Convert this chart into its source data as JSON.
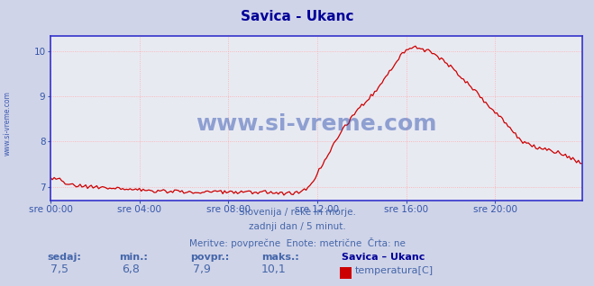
{
  "title": "Savica - Ukanc",
  "title_color": "#000099",
  "bg_color": "#d0d4e8",
  "plot_bg_color": "#e8eaf2",
  "line_color": "#cc0000",
  "axis_color": "#3333cc",
  "grid_color": "#ffaaaa",
  "grid_linestyle": "dotted",
  "tick_label_color": "#3355aa",
  "text_color": "#4466aa",
  "watermark_color": "#2244aa",
  "xlim": [
    0,
    287
  ],
  "ylim": [
    6.7,
    10.35
  ],
  "yticks": [
    7,
    8,
    9,
    10
  ],
  "xtick_positions": [
    0,
    48,
    96,
    144,
    192,
    240
  ],
  "xtick_labels": [
    "sre 00:00",
    "sre 04:00",
    "sre 08:00",
    "sre 12:00",
    "sre 16:00",
    "sre 20:00"
  ],
  "subtitle_lines": [
    "Slovenija / reke in morje.",
    "zadnji dan / 5 minut.",
    "Meritve: povprečne  Enote: metrične  Črta: ne"
  ],
  "footer_labels": [
    "sedaj:",
    "min.:",
    "povpr.:",
    "maks.:"
  ],
  "footer_values": [
    "7,5",
    "6,8",
    "7,9",
    "10,1"
  ],
  "legend_name": "Savica – Ukanc",
  "legend_unit": "temperatura[C]",
  "legend_color": "#cc0000",
  "watermark": "www.si-vreme.com",
  "side_watermark": "www.si-vreme.com",
  "x_pts": [
    0,
    5,
    10,
    20,
    40,
    60,
    75,
    90,
    110,
    120,
    125,
    128,
    132,
    136,
    140,
    144,
    148,
    155,
    162,
    168,
    175,
    182,
    188,
    192,
    196,
    200,
    205,
    210,
    215,
    220,
    225,
    230,
    235,
    240,
    245,
    250,
    255,
    260,
    265,
    270,
    275,
    280,
    285,
    287
  ],
  "y_pts": [
    7.2,
    7.15,
    7.05,
    7.0,
    6.95,
    6.9,
    6.88,
    6.88,
    6.88,
    6.88,
    6.85,
    6.85,
    6.85,
    6.9,
    7.0,
    7.3,
    7.6,
    8.1,
    8.5,
    8.8,
    9.1,
    9.5,
    9.85,
    10.05,
    10.1,
    10.05,
    10.0,
    9.85,
    9.7,
    9.5,
    9.3,
    9.1,
    8.85,
    8.65,
    8.45,
    8.2,
    8.0,
    7.9,
    7.85,
    7.8,
    7.75,
    7.65,
    7.55,
    7.5
  ]
}
